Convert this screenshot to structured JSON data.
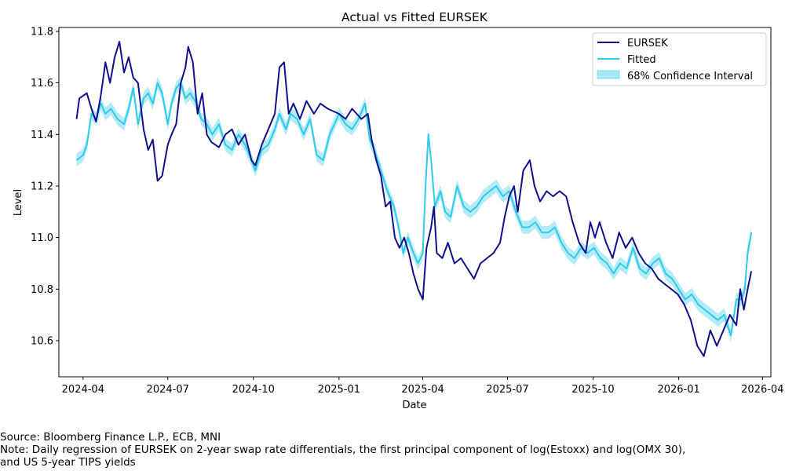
{
  "chart_data": {
    "type": "line",
    "title": "Actual vs Fitted EURSEK",
    "xlabel": "Date",
    "ylabel": "Level",
    "xlim": [
      "2024-03-06",
      "2026-04-10"
    ],
    "ylim": [
      10.46,
      11.815
    ],
    "x_ticks": [
      "2024-04",
      "2024-07",
      "2024-10",
      "2025-01",
      "2025-04",
      "2025-07",
      "2025-10",
      "2026-01",
      "2026-04"
    ],
    "y_ticks": [
      10.6,
      10.8,
      11.0,
      11.2,
      11.4,
      11.6,
      11.8
    ],
    "grid": false,
    "legend_position": "top-right",
    "legend": [
      "EURSEK",
      "Fitted",
      "68% Confidence Interval"
    ],
    "colors": {
      "actual": "#10108f",
      "fitted": "#2ecbec",
      "band": "#a8e8f6"
    },
    "ci_halfwidth": 0.025,
    "series": [
      {
        "name": "EURSEK",
        "points": [
          [
            "2024-03-25",
            11.46
          ],
          [
            "2024-03-28",
            11.54
          ],
          [
            "2024-04-05",
            11.56
          ],
          [
            "2024-04-10",
            11.5
          ],
          [
            "2024-04-15",
            11.45
          ],
          [
            "2024-04-20",
            11.55
          ],
          [
            "2024-04-25",
            11.68
          ],
          [
            "2024-04-30",
            11.6
          ],
          [
            "2024-05-05",
            11.7
          ],
          [
            "2024-05-10",
            11.76
          ],
          [
            "2024-05-15",
            11.64
          ],
          [
            "2024-05-20",
            11.7
          ],
          [
            "2024-05-25",
            11.62
          ],
          [
            "2024-05-30",
            11.6
          ],
          [
            "2024-06-05",
            11.42
          ],
          [
            "2024-06-10",
            11.34
          ],
          [
            "2024-06-15",
            11.38
          ],
          [
            "2024-06-20",
            11.22
          ],
          [
            "2024-06-25",
            11.24
          ],
          [
            "2024-07-01",
            11.36
          ],
          [
            "2024-07-05",
            11.4
          ],
          [
            "2024-07-10",
            11.44
          ],
          [
            "2024-07-15",
            11.6
          ],
          [
            "2024-07-20",
            11.66
          ],
          [
            "2024-07-23",
            11.74
          ],
          [
            "2024-07-28",
            11.68
          ],
          [
            "2024-08-02",
            11.48
          ],
          [
            "2024-08-07",
            11.56
          ],
          [
            "2024-08-12",
            11.4
          ],
          [
            "2024-08-17",
            11.37
          ],
          [
            "2024-08-25",
            11.35
          ],
          [
            "2024-09-01",
            11.4
          ],
          [
            "2024-09-08",
            11.42
          ],
          [
            "2024-09-15",
            11.36
          ],
          [
            "2024-09-22",
            11.4
          ],
          [
            "2024-09-29",
            11.3
          ],
          [
            "2024-10-03",
            11.28
          ],
          [
            "2024-10-10",
            11.36
          ],
          [
            "2024-10-17",
            11.42
          ],
          [
            "2024-10-24",
            11.48
          ],
          [
            "2024-10-29",
            11.66
          ],
          [
            "2024-11-03",
            11.68
          ],
          [
            "2024-11-08",
            11.48
          ],
          [
            "2024-11-13",
            11.52
          ],
          [
            "2024-11-20",
            11.46
          ],
          [
            "2024-11-27",
            11.53
          ],
          [
            "2024-12-05",
            11.48
          ],
          [
            "2024-12-12",
            11.52
          ],
          [
            "2024-12-20",
            11.5
          ],
          [
            "2025-01-01",
            11.48
          ],
          [
            "2025-01-08",
            11.46
          ],
          [
            "2025-01-15",
            11.5
          ],
          [
            "2025-01-20",
            11.48
          ],
          [
            "2025-01-25",
            11.46
          ],
          [
            "2025-02-01",
            11.48
          ],
          [
            "2025-02-05",
            11.38
          ],
          [
            "2025-02-10",
            11.3
          ],
          [
            "2025-02-15",
            11.24
          ],
          [
            "2025-02-20",
            11.12
          ],
          [
            "2025-02-25",
            11.14
          ],
          [
            "2025-03-02",
            11.0
          ],
          [
            "2025-03-07",
            10.96
          ],
          [
            "2025-03-12",
            11.0
          ],
          [
            "2025-03-17",
            10.94
          ],
          [
            "2025-03-22",
            10.86
          ],
          [
            "2025-03-27",
            10.8
          ],
          [
            "2025-04-01",
            10.76
          ],
          [
            "2025-04-05",
            10.96
          ],
          [
            "2025-04-10",
            11.04
          ],
          [
            "2025-04-13",
            11.12
          ],
          [
            "2025-04-16",
            10.94
          ],
          [
            "2025-04-22",
            10.92
          ],
          [
            "2025-04-28",
            10.98
          ],
          [
            "2025-05-05",
            10.9
          ],
          [
            "2025-05-12",
            10.92
          ],
          [
            "2025-05-19",
            10.88
          ],
          [
            "2025-05-26",
            10.84
          ],
          [
            "2025-06-02",
            10.9
          ],
          [
            "2025-06-09",
            10.92
          ],
          [
            "2025-06-16",
            10.94
          ],
          [
            "2025-06-23",
            10.98
          ],
          [
            "2025-06-28",
            11.08
          ],
          [
            "2025-07-03",
            11.16
          ],
          [
            "2025-07-08",
            11.2
          ],
          [
            "2025-07-12",
            11.1
          ],
          [
            "2025-07-18",
            11.26
          ],
          [
            "2025-07-25",
            11.3
          ],
          [
            "2025-07-30",
            11.2
          ],
          [
            "2025-08-05",
            11.14
          ],
          [
            "2025-08-12",
            11.18
          ],
          [
            "2025-08-19",
            11.16
          ],
          [
            "2025-08-26",
            11.18
          ],
          [
            "2025-09-02",
            11.16
          ],
          [
            "2025-09-09",
            11.06
          ],
          [
            "2025-09-16",
            10.98
          ],
          [
            "2025-09-23",
            10.94
          ],
          [
            "2025-09-28",
            11.06
          ],
          [
            "2025-10-03",
            11.0
          ],
          [
            "2025-10-08",
            11.06
          ],
          [
            "2025-10-15",
            10.98
          ],
          [
            "2025-10-22",
            10.92
          ],
          [
            "2025-10-29",
            11.02
          ],
          [
            "2025-11-05",
            10.96
          ],
          [
            "2025-11-12",
            11.0
          ],
          [
            "2025-11-19",
            10.94
          ],
          [
            "2025-11-26",
            10.9
          ],
          [
            "2025-12-03",
            10.88
          ],
          [
            "2025-12-10",
            10.84
          ],
          [
            "2025-12-17",
            10.82
          ],
          [
            "2025-12-24",
            10.8
          ],
          [
            "2025-12-31",
            10.78
          ],
          [
            "2026-01-07",
            10.74
          ],
          [
            "2026-01-14",
            10.68
          ],
          [
            "2026-01-21",
            10.58
          ],
          [
            "2026-01-28",
            10.54
          ],
          [
            "2026-02-04",
            10.64
          ],
          [
            "2026-02-11",
            10.58
          ],
          [
            "2026-02-18",
            10.64
          ],
          [
            "2026-02-25",
            10.7
          ],
          [
            "2026-03-04",
            10.66
          ],
          [
            "2026-03-08",
            10.8
          ],
          [
            "2026-03-12",
            10.72
          ],
          [
            "2026-03-16",
            10.8
          ],
          [
            "2026-03-20",
            10.87
          ]
        ]
      },
      {
        "name": "Fitted",
        "points": [
          [
            "2024-03-25",
            11.3
          ],
          [
            "2024-04-01",
            11.32
          ],
          [
            "2024-04-05",
            11.36
          ],
          [
            "2024-04-10",
            11.48
          ],
          [
            "2024-04-15",
            11.46
          ],
          [
            "2024-04-20",
            11.52
          ],
          [
            "2024-04-25",
            11.48
          ],
          [
            "2024-05-01",
            11.5
          ],
          [
            "2024-05-08",
            11.46
          ],
          [
            "2024-05-15",
            11.44
          ],
          [
            "2024-05-20",
            11.5
          ],
          [
            "2024-05-25",
            11.58
          ],
          [
            "2024-05-30",
            11.44
          ],
          [
            "2024-06-05",
            11.54
          ],
          [
            "2024-06-10",
            11.56
          ],
          [
            "2024-06-15",
            11.52
          ],
          [
            "2024-06-20",
            11.6
          ],
          [
            "2024-06-25",
            11.56
          ],
          [
            "2024-07-01",
            11.44
          ],
          [
            "2024-07-05",
            11.52
          ],
          [
            "2024-07-10",
            11.58
          ],
          [
            "2024-07-15",
            11.6
          ],
          [
            "2024-07-20",
            11.54
          ],
          [
            "2024-07-25",
            11.56
          ],
          [
            "2024-08-01",
            11.52
          ],
          [
            "2024-08-06",
            11.46
          ],
          [
            "2024-08-12",
            11.44
          ],
          [
            "2024-08-18",
            11.4
          ],
          [
            "2024-08-25",
            11.44
          ],
          [
            "2024-09-01",
            11.36
          ],
          [
            "2024-09-08",
            11.34
          ],
          [
            "2024-09-15",
            11.4
          ],
          [
            "2024-09-22",
            11.36
          ],
          [
            "2024-09-29",
            11.3
          ],
          [
            "2024-10-03",
            11.26
          ],
          [
            "2024-10-10",
            11.34
          ],
          [
            "2024-10-17",
            11.36
          ],
          [
            "2024-10-24",
            11.42
          ],
          [
            "2024-10-29",
            11.48
          ],
          [
            "2024-11-05",
            11.42
          ],
          [
            "2024-11-10",
            11.48
          ],
          [
            "2024-11-17",
            11.46
          ],
          [
            "2024-11-24",
            11.4
          ],
          [
            "2024-12-01",
            11.46
          ],
          [
            "2024-12-08",
            11.32
          ],
          [
            "2024-12-15",
            11.3
          ],
          [
            "2024-12-22",
            11.4
          ],
          [
            "2025-01-01",
            11.48
          ],
          [
            "2025-01-08",
            11.44
          ],
          [
            "2025-01-15",
            11.42
          ],
          [
            "2025-01-22",
            11.46
          ],
          [
            "2025-01-29",
            11.52
          ],
          [
            "2025-02-03",
            11.38
          ],
          [
            "2025-02-08",
            11.34
          ],
          [
            "2025-02-15",
            11.26
          ],
          [
            "2025-02-22",
            11.18
          ],
          [
            "2025-03-01",
            11.12
          ],
          [
            "2025-03-06",
            11.04
          ],
          [
            "2025-03-11",
            10.94
          ],
          [
            "2025-03-16",
            11.0
          ],
          [
            "2025-03-22",
            10.94
          ],
          [
            "2025-03-27",
            10.9
          ],
          [
            "2025-04-01",
            10.94
          ],
          [
            "2025-04-04",
            11.2
          ],
          [
            "2025-04-07",
            11.4
          ],
          [
            "2025-04-10",
            11.3
          ],
          [
            "2025-04-14",
            11.12
          ],
          [
            "2025-04-20",
            11.18
          ],
          [
            "2025-04-25",
            11.1
          ],
          [
            "2025-05-01",
            11.08
          ],
          [
            "2025-05-08",
            11.2
          ],
          [
            "2025-05-15",
            11.12
          ],
          [
            "2025-05-22",
            11.1
          ],
          [
            "2025-05-29",
            11.12
          ],
          [
            "2025-06-05",
            11.16
          ],
          [
            "2025-06-12",
            11.18
          ],
          [
            "2025-06-19",
            11.2
          ],
          [
            "2025-06-26",
            11.16
          ],
          [
            "2025-07-03",
            11.18
          ],
          [
            "2025-07-10",
            11.1
          ],
          [
            "2025-07-17",
            11.04
          ],
          [
            "2025-07-24",
            11.04
          ],
          [
            "2025-07-31",
            11.06
          ],
          [
            "2025-08-07",
            11.02
          ],
          [
            "2025-08-14",
            11.02
          ],
          [
            "2025-08-21",
            11.04
          ],
          [
            "2025-08-28",
            10.98
          ],
          [
            "2025-09-04",
            10.94
          ],
          [
            "2025-09-11",
            10.92
          ],
          [
            "2025-09-18",
            10.96
          ],
          [
            "2025-09-25",
            10.94
          ],
          [
            "2025-10-02",
            10.96
          ],
          [
            "2025-10-09",
            10.92
          ],
          [
            "2025-10-16",
            10.9
          ],
          [
            "2025-10-23",
            10.86
          ],
          [
            "2025-10-30",
            10.9
          ],
          [
            "2025-11-06",
            10.88
          ],
          [
            "2025-11-13",
            10.96
          ],
          [
            "2025-11-20",
            10.88
          ],
          [
            "2025-11-27",
            10.86
          ],
          [
            "2025-12-04",
            10.9
          ],
          [
            "2025-12-11",
            10.92
          ],
          [
            "2025-12-18",
            10.86
          ],
          [
            "2025-12-25",
            10.84
          ],
          [
            "2026-01-01",
            10.8
          ],
          [
            "2026-01-08",
            10.76
          ],
          [
            "2026-01-15",
            10.78
          ],
          [
            "2026-01-22",
            10.74
          ],
          [
            "2026-01-29",
            10.72
          ],
          [
            "2026-02-05",
            10.7
          ],
          [
            "2026-02-12",
            10.68
          ],
          [
            "2026-02-19",
            10.7
          ],
          [
            "2026-02-26",
            10.62
          ],
          [
            "2026-03-04",
            10.76
          ],
          [
            "2026-03-09",
            10.76
          ],
          [
            "2026-03-13",
            10.8
          ],
          [
            "2026-03-16",
            10.94
          ],
          [
            "2026-03-20",
            11.02
          ]
        ]
      }
    ]
  },
  "notes": {
    "source": "Source: Bloomberg Finance L.P., ECB, MNI",
    "note_line1": "Note: Daily regression of EURSEK on 2-year swap rate differentials, the first principal component of log(Estoxx) and log(OMX 30),",
    "note_line2": "and US 5-year TIPS yields"
  }
}
